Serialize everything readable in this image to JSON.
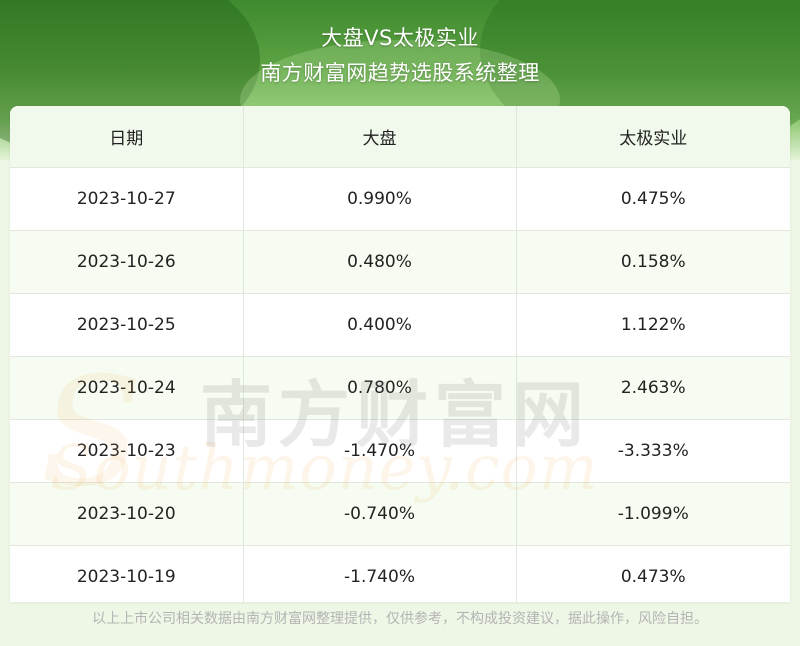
{
  "title": "大盘VS太极实业",
  "subtitle": "南方财富网趋势选股系统整理",
  "table": {
    "headers": [
      "日期",
      "大盘",
      "太极实业"
    ],
    "rows": [
      [
        "2023-10-27",
        "0.990%",
        "0.475%"
      ],
      [
        "2023-10-26",
        "0.480%",
        "0.158%"
      ],
      [
        "2023-10-25",
        "0.400%",
        "1.122%"
      ],
      [
        "2023-10-24",
        "0.780%",
        "2.463%"
      ],
      [
        "2023-10-23",
        "-1.470%",
        "-3.333%"
      ],
      [
        "2023-10-20",
        "-0.740%",
        "-1.099%"
      ],
      [
        "2023-10-19",
        "-1.740%",
        "0.473%"
      ]
    ]
  },
  "watermark": {
    "cn": "南方财富网",
    "en": "Southmoney.com"
  },
  "footer": "以上上市公司相关数据由南方财富网整理提供，仅供参考，不构成投资建议，据此操作，风险自担。"
}
